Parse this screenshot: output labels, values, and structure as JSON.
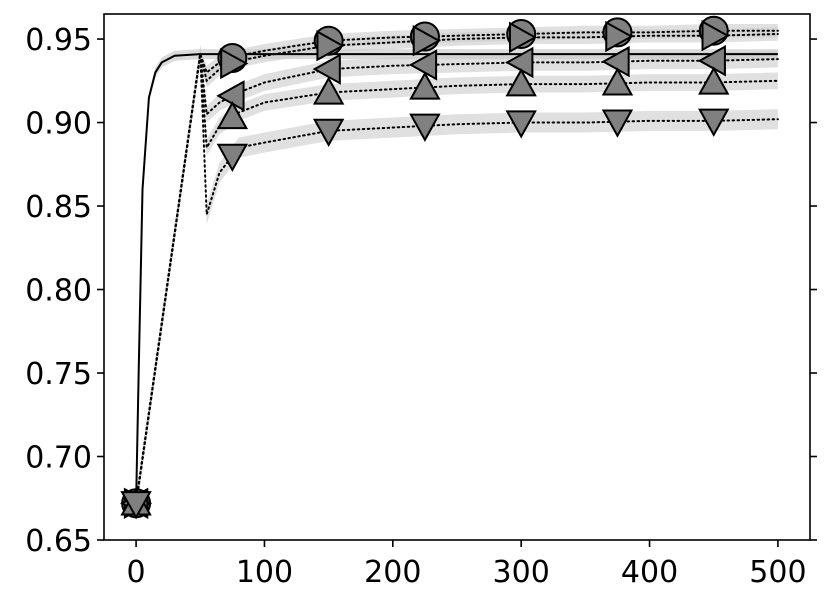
{
  "chart_data": {
    "type": "line",
    "title": "",
    "xlabel": "",
    "ylabel": "",
    "xlim": [
      -25,
      525
    ],
    "ylim": [
      0.65,
      0.965
    ],
    "x_ticks": [
      0,
      100,
      200,
      300,
      400,
      500
    ],
    "x_tick_labels": [
      "0",
      "100",
      "200",
      "300",
      "400",
      "500"
    ],
    "y_ticks": [
      0.65,
      0.7,
      0.75,
      0.8,
      0.85,
      0.9,
      0.95
    ],
    "y_tick_labels": [
      "0.65",
      "0.70",
      "0.75",
      "0.80",
      "0.85",
      "0.90",
      "0.95"
    ],
    "grid": false,
    "legend": "none",
    "colors": {
      "marker_fill": "#808080",
      "band_fill": "#cccccc",
      "line": "#000000"
    },
    "baseline": {
      "x": [
        0,
        2,
        5,
        10,
        15,
        20,
        30,
        50,
        100,
        200,
        300,
        400,
        500
      ],
      "y": [
        0.672,
        0.75,
        0.86,
        0.915,
        0.93,
        0.936,
        0.94,
        0.941,
        0.941,
        0.941,
        0.941,
        0.941,
        0.941
      ]
    },
    "series": [
      {
        "marker": "circle",
        "x": [
          0,
          50,
          55,
          65,
          80,
          100,
          150,
          200,
          250,
          300,
          350,
          400,
          450,
          500
        ],
        "y": [
          0.672,
          0.941,
          0.93,
          0.936,
          0.94,
          0.943,
          0.949,
          0.951,
          0.952,
          0.953,
          0.954,
          0.954,
          0.955,
          0.955
        ],
        "band": 0.004,
        "marker_x": [
          0,
          75,
          150,
          225,
          300,
          375,
          450
        ]
      },
      {
        "marker": "triangle-right",
        "x": [
          0,
          50,
          55,
          65,
          80,
          100,
          150,
          200,
          250,
          300,
          350,
          400,
          450,
          500
        ],
        "y": [
          0.672,
          0.941,
          0.925,
          0.932,
          0.937,
          0.94,
          0.946,
          0.948,
          0.95,
          0.951,
          0.951,
          0.952,
          0.952,
          0.953
        ],
        "band": 0.004,
        "marker_x": [
          0,
          75,
          150,
          225,
          300,
          375,
          450
        ]
      },
      {
        "marker": "triangle-left",
        "x": [
          0,
          50,
          55,
          65,
          80,
          100,
          150,
          200,
          250,
          300,
          350,
          400,
          450,
          500
        ],
        "y": [
          0.672,
          0.941,
          0.905,
          0.912,
          0.918,
          0.924,
          0.932,
          0.934,
          0.935,
          0.936,
          0.936,
          0.937,
          0.937,
          0.938
        ],
        "band": 0.005,
        "marker_x": [
          0,
          75,
          150,
          225,
          300,
          375,
          450
        ]
      },
      {
        "marker": "triangle-up",
        "x": [
          0,
          50,
          55,
          65,
          80,
          100,
          150,
          200,
          250,
          300,
          350,
          400,
          450,
          500
        ],
        "y": [
          0.672,
          0.941,
          0.885,
          0.898,
          0.906,
          0.912,
          0.918,
          0.92,
          0.922,
          0.923,
          0.923,
          0.924,
          0.924,
          0.925
        ],
        "band": 0.005,
        "marker_x": [
          0,
          75,
          150,
          225,
          300,
          375,
          450
        ]
      },
      {
        "marker": "triangle-down",
        "x": [
          0,
          50,
          55,
          65,
          80,
          100,
          150,
          200,
          250,
          300,
          350,
          400,
          450,
          500
        ],
        "y": [
          0.672,
          0.941,
          0.845,
          0.87,
          0.885,
          0.888,
          0.895,
          0.897,
          0.899,
          0.9,
          0.9,
          0.901,
          0.901,
          0.902
        ],
        "band": 0.006,
        "marker_x": [
          0,
          75,
          150,
          225,
          300,
          375,
          450
        ]
      }
    ]
  }
}
